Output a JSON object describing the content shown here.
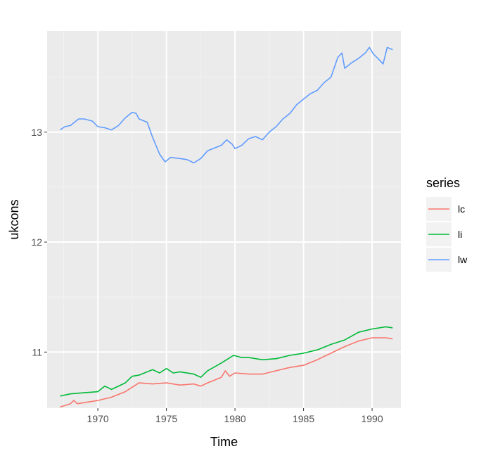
{
  "chart_data": {
    "type": "line",
    "xlabel": "Time",
    "ylabel": "ukcons",
    "xlim": [
      1966.3,
      1992.1
    ],
    "ylim": [
      10.49,
      13.92
    ],
    "x_ticks": [
      1970,
      1975,
      1980,
      1985,
      1990
    ],
    "x_tick_labels": [
      "1970",
      "1975",
      "1980",
      "1985",
      "1990"
    ],
    "y_ticks": [
      11,
      12,
      13
    ],
    "y_tick_labels": [
      "11",
      "12",
      "13"
    ],
    "grid": true,
    "legend": {
      "title": "series",
      "placement": "right"
    },
    "series": [
      {
        "name": "lc",
        "color": "#F8766D",
        "points": [
          [
            1967.25,
            10.5
          ],
          [
            1968.0,
            10.53
          ],
          [
            1968.25,
            10.56
          ],
          [
            1968.5,
            10.53
          ],
          [
            1969.0,
            10.54
          ],
          [
            1970.0,
            10.56
          ],
          [
            1971.0,
            10.59
          ],
          [
            1972.0,
            10.64
          ],
          [
            1972.5,
            10.68
          ],
          [
            1973.0,
            10.72
          ],
          [
            1974.0,
            10.71
          ],
          [
            1975.0,
            10.72
          ],
          [
            1976.0,
            10.7
          ],
          [
            1977.0,
            10.71
          ],
          [
            1977.5,
            10.69
          ],
          [
            1978.0,
            10.72
          ],
          [
            1979.0,
            10.77
          ],
          [
            1979.3,
            10.83
          ],
          [
            1979.6,
            10.78
          ],
          [
            1980.0,
            10.81
          ],
          [
            1981.0,
            10.8
          ],
          [
            1982.0,
            10.8
          ],
          [
            1983.0,
            10.83
          ],
          [
            1984.0,
            10.86
          ],
          [
            1985.0,
            10.88
          ],
          [
            1986.0,
            10.93
          ],
          [
            1987.0,
            10.99
          ],
          [
            1988.0,
            11.05
          ],
          [
            1989.0,
            11.1
          ],
          [
            1990.0,
            11.13
          ],
          [
            1991.0,
            11.13
          ],
          [
            1991.5,
            11.12
          ]
        ]
      },
      {
        "name": "li",
        "color": "#00BA38",
        "points": [
          [
            1967.25,
            10.6
          ],
          [
            1968.0,
            10.62
          ],
          [
            1969.0,
            10.63
          ],
          [
            1970.0,
            10.64
          ],
          [
            1970.5,
            10.69
          ],
          [
            1971.0,
            10.66
          ],
          [
            1972.0,
            10.72
          ],
          [
            1972.5,
            10.78
          ],
          [
            1973.0,
            10.79
          ],
          [
            1974.0,
            10.84
          ],
          [
            1974.5,
            10.81
          ],
          [
            1975.0,
            10.85
          ],
          [
            1975.5,
            10.81
          ],
          [
            1976.0,
            10.82
          ],
          [
            1977.0,
            10.8
          ],
          [
            1977.5,
            10.77
          ],
          [
            1978.0,
            10.83
          ],
          [
            1979.0,
            10.9
          ],
          [
            1979.9,
            10.97
          ],
          [
            1980.5,
            10.95
          ],
          [
            1981.0,
            10.95
          ],
          [
            1982.0,
            10.93
          ],
          [
            1983.0,
            10.94
          ],
          [
            1984.0,
            10.97
          ],
          [
            1985.0,
            10.99
          ],
          [
            1986.0,
            11.02
          ],
          [
            1987.0,
            11.07
          ],
          [
            1988.0,
            11.11
          ],
          [
            1989.0,
            11.18
          ],
          [
            1990.0,
            11.21
          ],
          [
            1991.0,
            11.23
          ],
          [
            1991.5,
            11.22
          ]
        ]
      },
      {
        "name": "lw",
        "color": "#619CFF",
        "points": [
          [
            1967.25,
            13.02
          ],
          [
            1967.6,
            13.05
          ],
          [
            1968.0,
            13.06
          ],
          [
            1968.6,
            13.12
          ],
          [
            1969.0,
            13.12
          ],
          [
            1969.6,
            13.1
          ],
          [
            1970.0,
            13.05
          ],
          [
            1970.5,
            13.04
          ],
          [
            1971.0,
            13.02
          ],
          [
            1971.5,
            13.06
          ],
          [
            1972.0,
            13.13
          ],
          [
            1972.5,
            13.18
          ],
          [
            1972.8,
            13.17
          ],
          [
            1973.0,
            13.12
          ],
          [
            1973.6,
            13.09
          ],
          [
            1974.0,
            12.95
          ],
          [
            1974.5,
            12.8
          ],
          [
            1974.9,
            12.73
          ],
          [
            1975.3,
            12.77
          ],
          [
            1976.0,
            12.76
          ],
          [
            1976.5,
            12.75
          ],
          [
            1977.0,
            12.72
          ],
          [
            1977.5,
            12.76
          ],
          [
            1978.0,
            12.83
          ],
          [
            1978.6,
            12.86
          ],
          [
            1979.0,
            12.88
          ],
          [
            1979.4,
            12.93
          ],
          [
            1979.8,
            12.89
          ],
          [
            1980.0,
            12.85
          ],
          [
            1980.5,
            12.88
          ],
          [
            1981.0,
            12.94
          ],
          [
            1981.5,
            12.96
          ],
          [
            1982.0,
            12.93
          ],
          [
            1982.5,
            13.0
          ],
          [
            1983.0,
            13.05
          ],
          [
            1983.5,
            13.12
          ],
          [
            1984.0,
            13.17
          ],
          [
            1984.5,
            13.25
          ],
          [
            1985.0,
            13.3
          ],
          [
            1985.5,
            13.35
          ],
          [
            1986.0,
            13.38
          ],
          [
            1986.5,
            13.45
          ],
          [
            1987.0,
            13.5
          ],
          [
            1987.5,
            13.68
          ],
          [
            1987.8,
            13.72
          ],
          [
            1988.0,
            13.58
          ],
          [
            1988.5,
            13.63
          ],
          [
            1989.0,
            13.67
          ],
          [
            1989.5,
            13.72
          ],
          [
            1989.8,
            13.77
          ],
          [
            1990.1,
            13.71
          ],
          [
            1990.5,
            13.66
          ],
          [
            1990.8,
            13.62
          ],
          [
            1991.1,
            13.77
          ],
          [
            1991.5,
            13.75
          ]
        ]
      }
    ]
  },
  "colors": {
    "panel_bg": "#EBEBEB",
    "grid_major": "#FFFFFF",
    "grid_minor": "#F2F2F2"
  }
}
